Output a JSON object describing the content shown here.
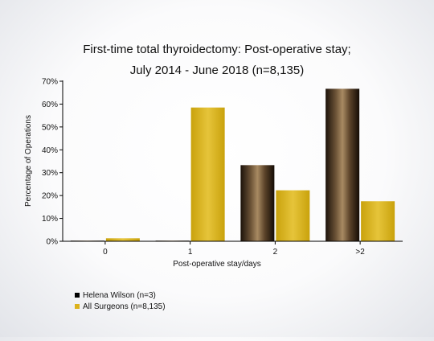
{
  "chart_data": {
    "type": "bar",
    "title_lines": [
      "First-time total thyroidectomy: Post-operative stay;",
      "July 2014 - June 2018 (n=8,135)"
    ],
    "xlabel": "Post-operative stay/days",
    "ylabel": "Percentage of Operations",
    "categories": [
      "0",
      "1",
      "2",
      ">2"
    ],
    "ylim": [
      0,
      70
    ],
    "yticks": [
      {
        "value": 0,
        "label": "0%"
      },
      {
        "value": 10,
        "label": "10%"
      },
      {
        "value": 20,
        "label": "20%"
      },
      {
        "value": 30,
        "label": "30%"
      },
      {
        "value": 40,
        "label": "40%"
      },
      {
        "value": 50,
        "label": "50%"
      },
      {
        "value": 60,
        "label": "60%"
      },
      {
        "value": 70,
        "label": "70%"
      }
    ],
    "grid": false,
    "legend_position": "bottom-left",
    "series": [
      {
        "name": "Helena Wilson (n=3)",
        "values": [
          0,
          0,
          33.3,
          66.7
        ],
        "color": "#3a2a1c"
      },
      {
        "name": "All Surgeons (n=8,135)",
        "values": [
          1.3,
          58.5,
          22.3,
          17.5
        ],
        "color": "#d9b21f"
      }
    ]
  }
}
